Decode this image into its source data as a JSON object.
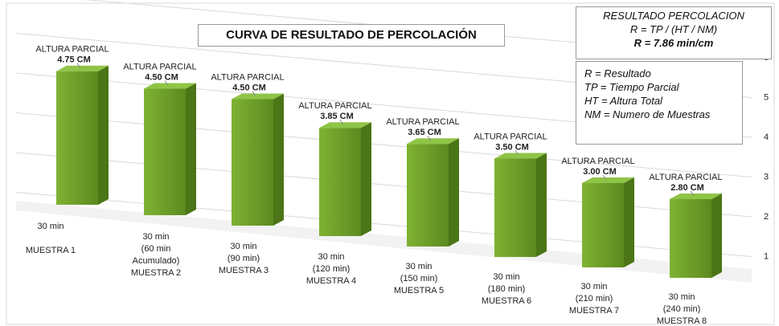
{
  "chart_data": {
    "type": "bar",
    "title": "CURVA DE RESULTADO DE PERCOLACIÓN",
    "formula_box": [
      "RESULTADO PERCOLACION",
      "R = TP / (HT / NM)",
      "R = 7.86 min/cm"
    ],
    "legend_box": [
      "R = Resultado",
      "TP = Tiempo Parcial",
      "HT = Altura Total",
      "NM = Numero de Muestras"
    ],
    "categories": [
      "30 min\n\nMUESTRA 1",
      "30 min\n(60 min\nAcumulado)\nMUESTRA 2",
      "30 min\n(90 min)\nMUESTRA 3",
      "30 min\n(120 min)\nMUESTRA 4",
      "30 min\n(150 min)\nMUESTRA 5",
      "30 min\n(180 min)\nMUESTRA 6",
      "30 min\n(210 min)\nMUESTRA 7",
      "30 min\n(240 min)\nMUESTRA 8"
    ],
    "values": [
      4.75,
      4.5,
      4.5,
      3.85,
      3.65,
      3.5,
      3.0,
      2.8
    ],
    "value_labels": [
      "4.75 CM",
      "4.50 CM",
      "4.50 CM",
      "3.85 CM",
      "3.65 CM",
      "3.50 CM",
      "3.00 CM",
      "2.80 CM"
    ],
    "annotations": [
      "ALTURA PARCIAL",
      "ALTURA PARCIAL",
      "ALTURA PARCIAL",
      "ALTURA PARCIAL",
      "ALTURA PARCIAL",
      "ALTURA PARCIAL",
      "ALTURA PARCIAL",
      "ALTURA PARCIAL"
    ],
    "color": "#7fb233",
    "ylim": [
      0,
      6
    ],
    "yticks": [
      1,
      2,
      3,
      4,
      5,
      6
    ],
    "grid": true
  }
}
